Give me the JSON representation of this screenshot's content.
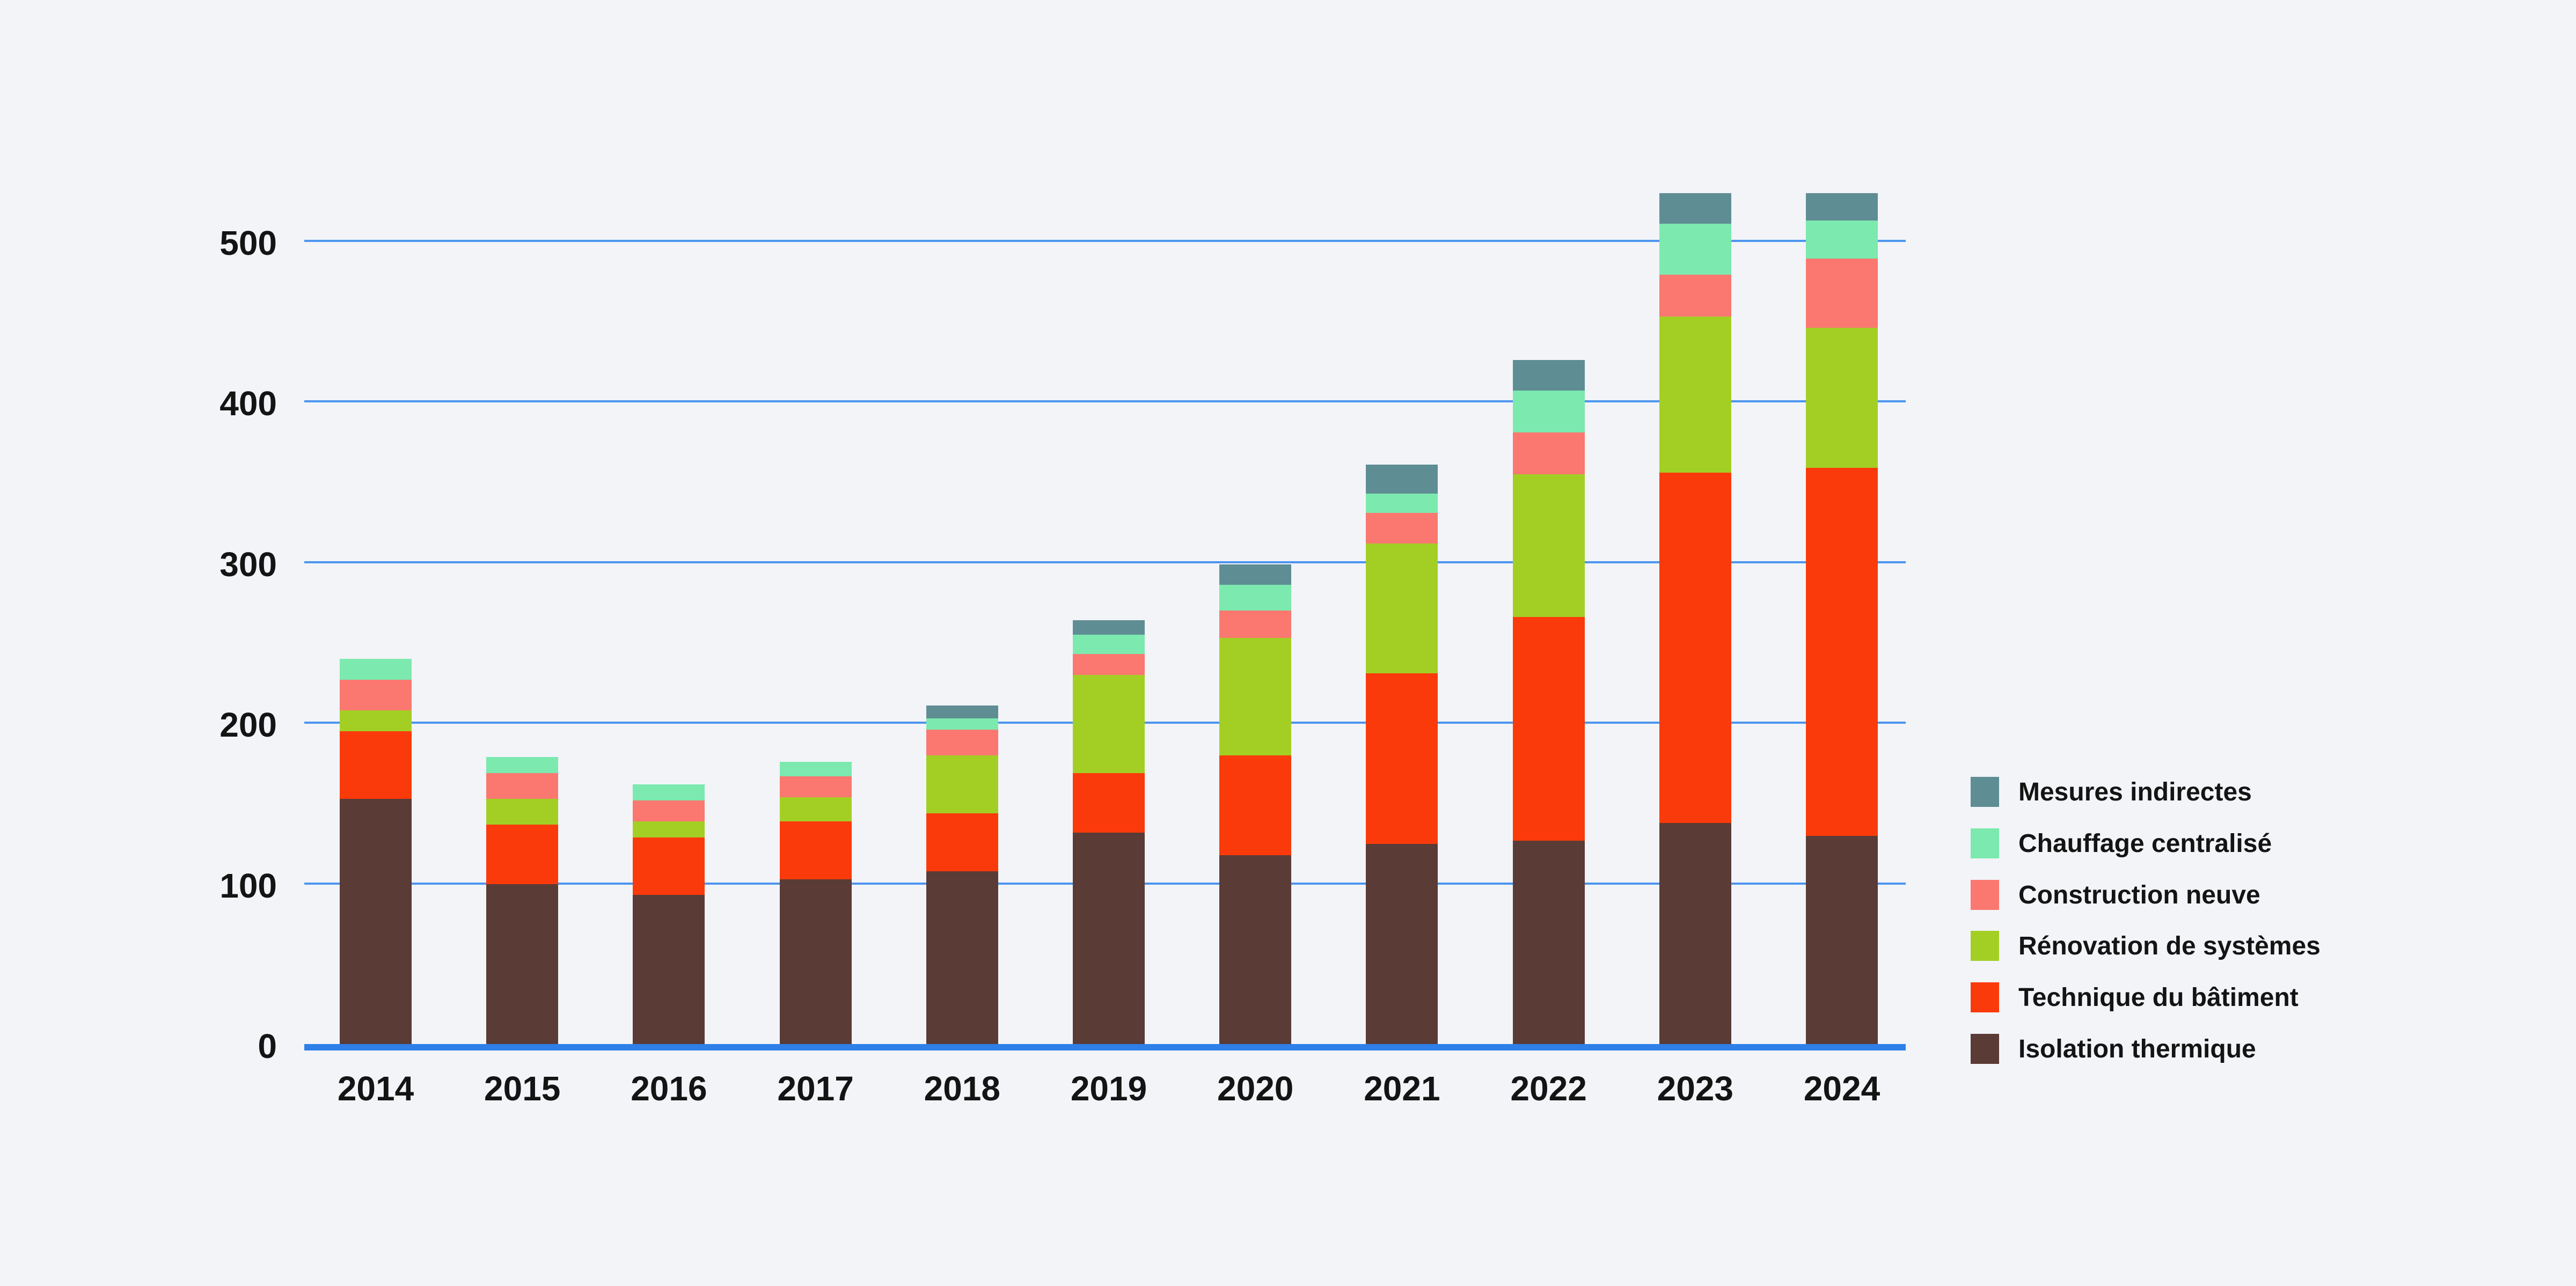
{
  "chart_data": {
    "type": "bar",
    "stacked": true,
    "title": "",
    "xlabel": "",
    "ylabel": "",
    "categories": [
      "2014",
      "2015",
      "2016",
      "2017",
      "2018",
      "2019",
      "2020",
      "2021",
      "2022",
      "2023",
      "2024"
    ],
    "series": [
      {
        "name": "Isolation thermique",
        "color": "#5A3B36",
        "values": [
          154,
          101,
          94,
          104,
          109,
          133,
          119,
          126,
          128,
          139,
          131
        ]
      },
      {
        "name": "Technique du bâtiment",
        "color": "#FB3A0B",
        "values": [
          42,
          37,
          36,
          36,
          36,
          37,
          62,
          106,
          139,
          218,
          229
        ]
      },
      {
        "name": "Rénovation de systèmes",
        "color": "#A3CF25",
        "values": [
          13,
          16,
          10,
          15,
          36,
          61,
          73,
          81,
          89,
          97,
          87
        ]
      },
      {
        "name": "Construction neuve",
        "color": "#FA7870",
        "values": [
          19,
          16,
          13,
          13,
          16,
          13,
          17,
          19,
          26,
          26,
          43
        ]
      },
      {
        "name": "Chauffage centralisé",
        "color": "#7CE9AE",
        "values": [
          13,
          10,
          10,
          9,
          7,
          12,
          16,
          12,
          26,
          32,
          24
        ]
      },
      {
        "name": "Mesures indirectes",
        "color": "#5F8D94",
        "values": [
          0,
          0,
          0,
          0,
          8,
          9,
          13,
          18,
          19,
          19,
          17
        ]
      }
    ],
    "totals": [
      241,
      180,
      163,
      177,
      212,
      265,
      300,
      362,
      427,
      531,
      531
    ],
    "y_ticks": [
      "0",
      "100",
      "200",
      "300",
      "400",
      "500"
    ],
    "ylim": [
      0,
      560
    ],
    "grid": true,
    "legend_position": "right",
    "legend_order_top_to_bottom": [
      "Mesures indirectes",
      "Chauffage centralisé",
      "Construction neuve",
      "Rénovation de systèmes",
      "Technique du bâtiment",
      "Isolation thermique"
    ]
  },
  "colors": {
    "background": "#F2F4F8",
    "gridline": "#4D96EE",
    "baseline": "#2E7FE8",
    "text": "#141414"
  }
}
